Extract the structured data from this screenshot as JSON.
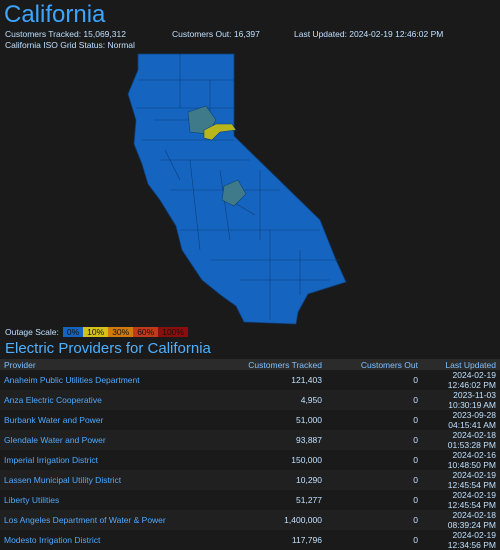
{
  "page": {
    "title": "California",
    "customers_tracked": "Customers Tracked: 15,069,312",
    "customers_out": "Customers Out: 16,397",
    "last_updated": "Last Updated: 2024-02-19 12:46:02 PM",
    "grid_status": "California ISO Grid Status: Normal"
  },
  "legend": {
    "label": "Outage Scale:",
    "items": [
      {
        "label": "0%",
        "color": "#1565c0"
      },
      {
        "label": "10%",
        "color": "#d4c21a"
      },
      {
        "label": "30%",
        "color": "#d07a10"
      },
      {
        "label": "60%",
        "color": "#c0391b"
      },
      {
        "label": "100%",
        "color": "#8a0e0e"
      }
    ]
  },
  "map": {
    "fill_color": "#1565c0",
    "border_color": "#0c3f7a",
    "affected_color": "#3f7a8a",
    "outage_color": "#b9b51c"
  },
  "providers": {
    "heading": "Electric Providers for California",
    "columns": [
      "Provider",
      "Customers Tracked",
      "Customers Out",
      "Last Updated"
    ],
    "rows": [
      {
        "provider": "Anaheim Public Utilities Department",
        "tracked": "121,403",
        "out": "0",
        "updated": "2024-02-19 12:46:02 PM"
      },
      {
        "provider": "Anza Electric Cooperative",
        "tracked": "4,950",
        "out": "0",
        "updated": "2023-11-03 10:30:19 AM"
      },
      {
        "provider": "Burbank Water and Power",
        "tracked": "51,000",
        "out": "0",
        "updated": "2023-09-28 04:15:41 AM"
      },
      {
        "provider": "Glendale Water and Power",
        "tracked": "93,887",
        "out": "0",
        "updated": "2024-02-18 01:53:28 PM"
      },
      {
        "provider": "Imperial Irrigation District",
        "tracked": "150,000",
        "out": "0",
        "updated": "2024-02-16 10:48:50 PM"
      },
      {
        "provider": "Lassen Municipal Utility District",
        "tracked": "10,290",
        "out": "0",
        "updated": "2024-02-19 12:45:54 PM"
      },
      {
        "provider": "Liberty Utilities",
        "tracked": "51,277",
        "out": "0",
        "updated": "2024-02-19 12:45:54 PM"
      },
      {
        "provider": "Los Angeles Department of Water & Power",
        "tracked": "1,400,000",
        "out": "0",
        "updated": "2024-02-18 08:39:24 PM"
      },
      {
        "provider": "Modesto Irrigation District",
        "tracked": "117,796",
        "out": "0",
        "updated": "2024-02-19 12:34:56 PM"
      }
    ]
  }
}
